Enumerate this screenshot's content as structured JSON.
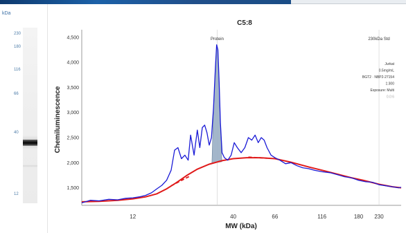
{
  "lane": {
    "unit_label": "kDa",
    "ticks": [
      {
        "label": "230"
      },
      {
        "label": "180"
      },
      {
        "label": "116"
      },
      {
        "label": "66"
      },
      {
        "label": "40"
      },
      {
        "label": "12"
      }
    ]
  },
  "info_panel": {
    "lines": [
      "Jurkat",
      "0.5mg/mL",
      "BGT2 · NBP2-27154",
      "1:300",
      "Exposure: Multi"
    ],
    "faint_line": "0.0:6"
  },
  "colors": {
    "trace": "#1a1ad6",
    "baseline": "#e01a1a",
    "peak_fill": "#9fb3c8",
    "top_strip": "#1c61a8"
  },
  "chart_data": {
    "type": "line",
    "title": "C5:8",
    "xlabel": "MW (kDa)",
    "ylabel": "Chemiluminescence",
    "x_scale": "log",
    "xlim": [
      6.5,
      300
    ],
    "ylim": [
      1150,
      4650
    ],
    "x_ticks": [
      12,
      40,
      66,
      116,
      180,
      230
    ],
    "y_ticks": [
      1500,
      2000,
      2500,
      3000,
      3500,
      4000,
      4500
    ],
    "y_tick_labels": [
      "1,500",
      "2,000",
      "2,500",
      "3,000",
      "3,500",
      "4,000",
      "4,500"
    ],
    "grid": false,
    "annotations": [
      {
        "text": "Protein",
        "x": 33
      },
      {
        "text": "230kDa Std",
        "x": 230
      }
    ],
    "series": [
      {
        "role": "signal",
        "points": [
          [
            6.5,
            1200
          ],
          [
            7.2,
            1250
          ],
          [
            8,
            1240
          ],
          [
            9,
            1270
          ],
          [
            10,
            1260
          ],
          [
            11,
            1290
          ],
          [
            12,
            1300
          ],
          [
            13,
            1320
          ],
          [
            14,
            1350
          ],
          [
            15,
            1400
          ],
          [
            16,
            1480
          ],
          [
            17,
            1550
          ],
          [
            18,
            1650
          ],
          [
            19,
            1850
          ],
          [
            19.8,
            2250
          ],
          [
            20.6,
            2300
          ],
          [
            21.5,
            2080
          ],
          [
            22.4,
            2150
          ],
          [
            23.3,
            2050
          ],
          [
            24,
            2550
          ],
          [
            25,
            2150
          ],
          [
            26,
            2650
          ],
          [
            26.8,
            2300
          ],
          [
            27.6,
            2700
          ],
          [
            28.4,
            2750
          ],
          [
            29.2,
            2600
          ],
          [
            30,
            2350
          ],
          [
            30.8,
            2500
          ],
          [
            31.6,
            3100
          ],
          [
            32.3,
            3900
          ],
          [
            32.8,
            4350
          ],
          [
            33.3,
            4250
          ],
          [
            33.8,
            3600
          ],
          [
            34.3,
            2800
          ],
          [
            35,
            2200
          ],
          [
            36,
            2100
          ],
          [
            37.5,
            2050
          ],
          [
            39,
            2150
          ],
          [
            40.5,
            2400
          ],
          [
            42,
            2300
          ],
          [
            44,
            2200
          ],
          [
            46,
            2300
          ],
          [
            48,
            2500
          ],
          [
            50,
            2450
          ],
          [
            52,
            2550
          ],
          [
            54,
            2400
          ],
          [
            56,
            2500
          ],
          [
            58,
            2450
          ],
          [
            60,
            2300
          ],
          [
            63,
            2150
          ],
          [
            66,
            2100
          ],
          [
            70,
            2050
          ],
          [
            75,
            1980
          ],
          [
            80,
            2000
          ],
          [
            86,
            1940
          ],
          [
            92,
            1900
          ],
          [
            99,
            1880
          ],
          [
            106,
            1850
          ],
          [
            116,
            1820
          ],
          [
            128,
            1800
          ],
          [
            140,
            1760
          ],
          [
            152,
            1720
          ],
          [
            165,
            1700
          ],
          [
            180,
            1650
          ],
          [
            196,
            1620
          ],
          [
            213,
            1610
          ],
          [
            230,
            1560
          ],
          [
            250,
            1540
          ],
          [
            270,
            1520
          ],
          [
            290,
            1500
          ],
          [
            300,
            1510
          ]
        ]
      },
      {
        "role": "baseline",
        "points": [
          [
            6.5,
            1220
          ],
          [
            8,
            1230
          ],
          [
            10,
            1250
          ],
          [
            12,
            1280
          ],
          [
            14,
            1320
          ],
          [
            16,
            1380
          ],
          [
            18,
            1480
          ],
          [
            20,
            1590
          ],
          [
            23,
            1750
          ],
          [
            26,
            1870
          ],
          [
            30,
            1970
          ],
          [
            35,
            2040
          ],
          [
            40,
            2080
          ],
          [
            47,
            2100
          ],
          [
            55,
            2100
          ],
          [
            66,
            2080
          ],
          [
            80,
            2010
          ],
          [
            100,
            1910
          ],
          [
            116,
            1850
          ],
          [
            140,
            1770
          ],
          [
            165,
            1700
          ],
          [
            190,
            1650
          ],
          [
            230,
            1570
          ],
          [
            270,
            1520
          ],
          [
            300,
            1500
          ]
        ]
      },
      {
        "role": "baseline-dash-left",
        "points": [
          [
            19,
            1540
          ],
          [
            24,
            1740
          ]
        ]
      },
      {
        "role": "baseline-dash-right",
        "points": [
          [
            48,
            2110
          ],
          [
            60,
            2090
          ]
        ]
      },
      {
        "role": "peak-fill",
        "points": [
          [
            31.0,
            1990
          ],
          [
            31.6,
            3100
          ],
          [
            32.3,
            3900
          ],
          [
            32.8,
            4350
          ],
          [
            33.3,
            4250
          ],
          [
            33.8,
            3600
          ],
          [
            34.3,
            2800
          ],
          [
            34.9,
            2020
          ]
        ]
      }
    ]
  }
}
